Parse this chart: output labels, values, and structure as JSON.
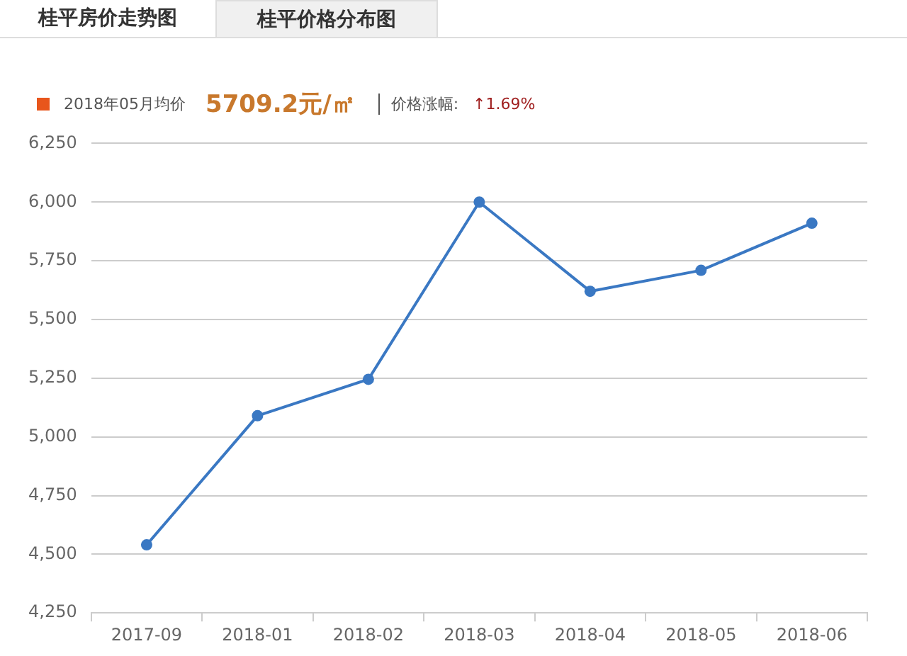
{
  "chart_data": {
    "type": "line",
    "categories": [
      "2017-09",
      "2018-01",
      "2018-02",
      "2018-03",
      "2018-04",
      "2018-05",
      "2018-06"
    ],
    "series": [
      {
        "color": "#3a78c3",
        "values": [
          4540,
          5090,
          5245,
          6000,
          5620,
          5709.2,
          5910
        ]
      }
    ],
    "ylim": [
      4250,
      6250
    ],
    "yticks": [
      {
        "value": 4250,
        "label": "4,250"
      },
      {
        "value": 4500,
        "label": "4,500"
      },
      {
        "value": 4750,
        "label": "4,750"
      },
      {
        "value": 5000,
        "label": "5,000"
      },
      {
        "value": 5250,
        "label": "5,250"
      },
      {
        "value": 5500,
        "label": "5,500"
      },
      {
        "value": 5750,
        "label": "5,750"
      },
      {
        "value": 6000,
        "label": "6,000"
      },
      {
        "value": 6250,
        "label": "6,250"
      }
    ],
    "grid": "y",
    "legend": false,
    "marker": "circle",
    "line_style": "solid",
    "annotations": [
      "桂平房价走势图",
      "桂平价格分布图",
      "2018年05月均价",
      "5709.2元/㎡",
      "价格涨幅:",
      "↑1.69%"
    ]
  }
}
